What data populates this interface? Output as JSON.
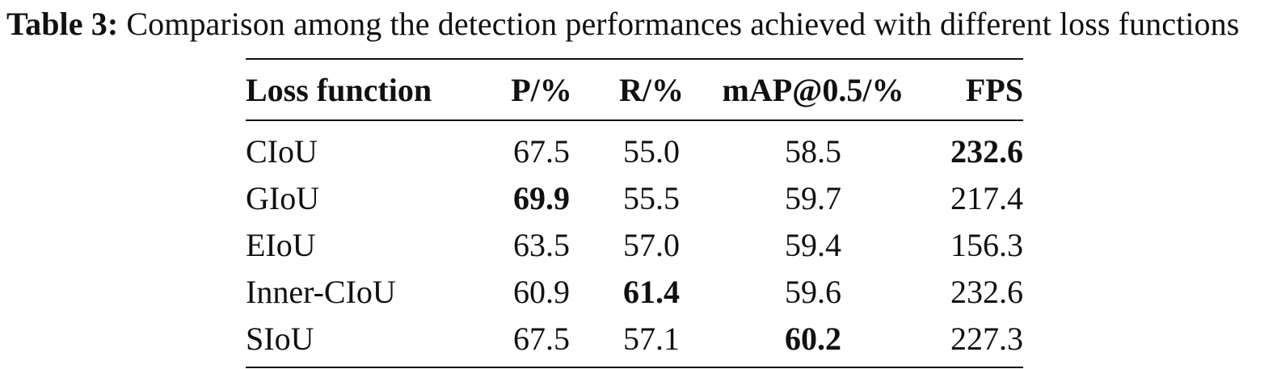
{
  "caption": {
    "label": "Table 3:",
    "text": "Comparison among the detection performances achieved with different loss functions"
  },
  "table": {
    "headers": [
      "Loss function",
      "P/%",
      "R/%",
      "mAP@0.5/%",
      "FPS"
    ],
    "rows": [
      [
        "CIoU",
        "67.5",
        "55.0",
        "58.5",
        "232.6"
      ],
      [
        "GIoU",
        "69.9",
        "55.5",
        "59.7",
        "217.4"
      ],
      [
        "EIoU",
        "63.5",
        "57.0",
        "59.4",
        "156.3"
      ],
      [
        "Inner-CIoU",
        "60.9",
        "61.4",
        "59.6",
        "232.6"
      ],
      [
        "SIoU",
        "67.5",
        "57.1",
        "60.2",
        "227.3"
      ]
    ],
    "bold_cells": [
      [
        0,
        4
      ],
      [
        1,
        1
      ],
      [
        3,
        2
      ],
      [
        4,
        3
      ]
    ]
  }
}
